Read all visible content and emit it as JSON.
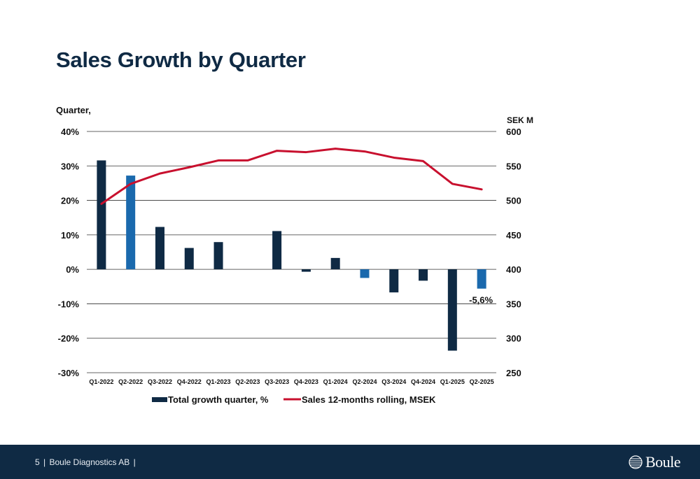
{
  "slide": {
    "title": "Sales Growth by Quarter",
    "footer_page": "5",
    "footer_company": "Boule Diagnostics AB",
    "logo_text": "Boule"
  },
  "colors": {
    "dark_bar": "#0f2a44",
    "blue_bar": "#1a69ad",
    "line": "#c8102e",
    "grid": "#333333",
    "footer_bg": "#0f2a44"
  },
  "chart_data": {
    "type": "bar",
    "categories": [
      "Q1-2022",
      "Q2-2022",
      "Q3-2022",
      "Q4-2022",
      "Q1-2023",
      "Q2-2023",
      "Q3-2023",
      "Q4-2023",
      "Q1-2024",
      "Q2-2024",
      "Q3-2024",
      "Q4-2024",
      "Q1-2025",
      "Q2-2025"
    ],
    "series": [
      {
        "name": "Total growth quarter, %",
        "chart_type": "bar",
        "axis": "left",
        "values": [
          31.6,
          27.2,
          12.3,
          6.2,
          7.9,
          0.0,
          11.1,
          -0.7,
          3.3,
          -2.5,
          -6.7,
          -3.3,
          -23.6,
          -5.6
        ],
        "highlighted": [
          false,
          true,
          false,
          false,
          false,
          false,
          false,
          false,
          false,
          true,
          false,
          false,
          false,
          true
        ]
      },
      {
        "name": "Sales 12-months rolling, MSEK",
        "chart_type": "line",
        "axis": "right",
        "values": [
          495,
          524,
          539,
          548,
          558,
          558,
          572,
          570,
          575,
          571,
          562,
          557,
          524,
          516
        ]
      }
    ],
    "ylabel_left": "Quarter,",
    "ylabel_right": "SEK M",
    "ylim_left": [
      -30,
      40
    ],
    "ylim_right": [
      250,
      600
    ],
    "yticks_left": [
      "-30%",
      "-20%",
      "-10%",
      "0%",
      "10%",
      "20%",
      "30%",
      "40%"
    ],
    "yticks_right": [
      "250",
      "300",
      "350",
      "400",
      "450",
      "500",
      "550",
      "600"
    ],
    "annotation": {
      "label": "-5,6%",
      "category": "Q2-2025"
    },
    "grid": true,
    "legend_position": "bottom"
  }
}
